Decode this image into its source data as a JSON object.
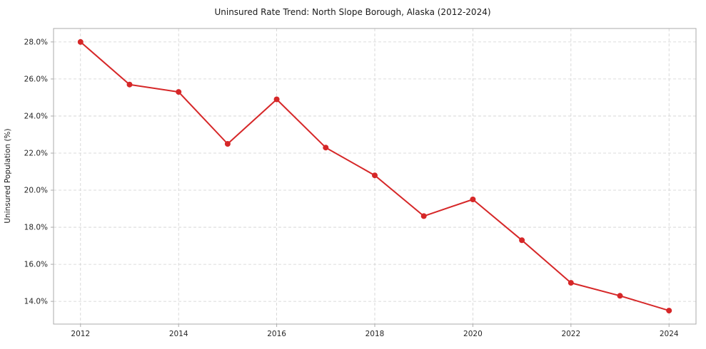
{
  "chart_data": {
    "type": "line",
    "title": "Uninsured Rate Trend: North Slope Borough, Alaska (2012-2024)",
    "xlabel": "",
    "ylabel": "Uninsured Population (%)",
    "x": [
      2012,
      2013,
      2014,
      2015,
      2016,
      2017,
      2018,
      2019,
      2020,
      2021,
      2022,
      2023,
      2024
    ],
    "series": [
      {
        "name": "Uninsured rate",
        "values": [
          28.0,
          25.7,
          25.3,
          22.5,
          24.9,
          22.3,
          20.8,
          18.6,
          19.5,
          17.3,
          15.0,
          14.3,
          13.5
        ]
      }
    ],
    "xticks": [
      2012,
      2014,
      2016,
      2018,
      2020,
      2022,
      2024
    ],
    "yticks": [
      14.0,
      16.0,
      18.0,
      20.0,
      22.0,
      24.0,
      26.0,
      28.0
    ],
    "ytick_suffix": "%",
    "xlim": [
      2011.45,
      2024.55
    ],
    "ylim": [
      12.775,
      28.725
    ],
    "grid": true,
    "grid_style": "dashed",
    "legend": false,
    "colors": {
      "line": "#d62728",
      "marker": "#d62728",
      "grid": "#d0d0d0",
      "spine": "#ababab",
      "background": "#ffffff"
    }
  }
}
